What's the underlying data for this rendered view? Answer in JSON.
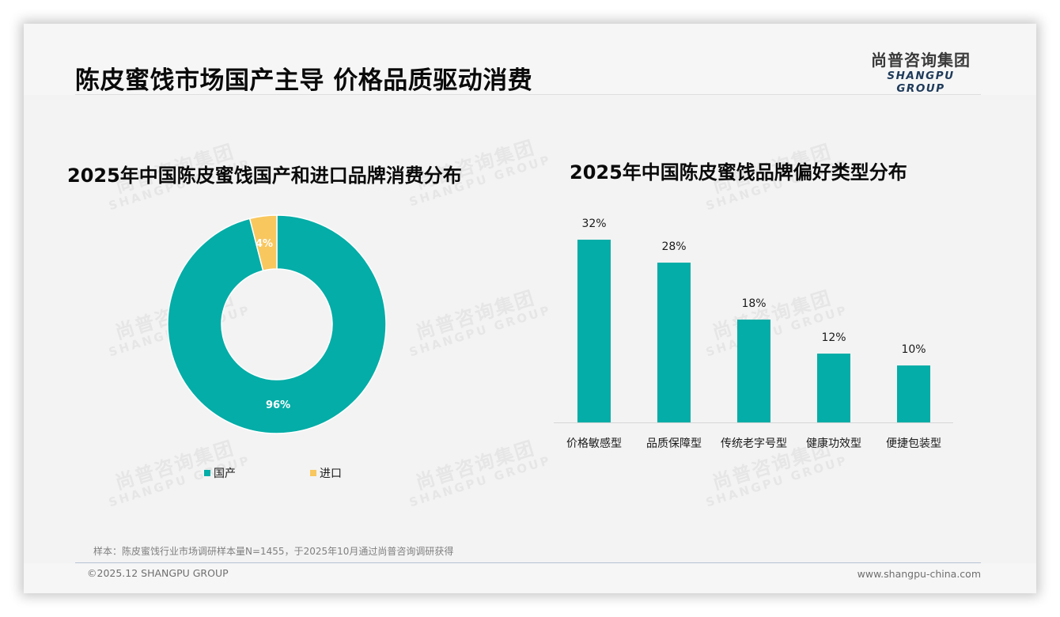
{
  "header": {
    "title": "陈皮蜜饯市场国产主导 价格品质驱动消费",
    "logo_cn": "尚普咨询集团",
    "logo_en": "SHANGPU GROUP"
  },
  "watermark": {
    "cn": "尚普咨询集团",
    "en": "SHANGPU GROUP"
  },
  "colors": {
    "teal": "#04ADA7",
    "yellow": "#F8C75E",
    "background": "#F3F3F3"
  },
  "chart_data": [
    {
      "type": "pie",
      "subtype": "donut",
      "title": "2025年中国陈皮蜜饯国产和进口品牌消费分布",
      "categories": [
        "国产",
        "进口"
      ],
      "values": [
        96,
        4
      ],
      "labels": [
        "96%",
        "4%"
      ],
      "colors": [
        "#04ADA7",
        "#F8C75E"
      ],
      "legend_position": "bottom"
    },
    {
      "type": "bar",
      "title": "2025年中国陈皮蜜饯品牌偏好类型分布",
      "categories": [
        "价格敏感型",
        "品质保障型",
        "传统老字号型",
        "健康功效型",
        "便捷包装型"
      ],
      "values": [
        32,
        28,
        18,
        12,
        10
      ],
      "labels": [
        "32%",
        "28%",
        "18%",
        "12%",
        "10%"
      ],
      "xlabel": "",
      "ylabel": "",
      "ylim": [
        0,
        35
      ],
      "grid": false,
      "color": "#04ADA7"
    }
  ],
  "left_chart": {
    "title": "2025年中国陈皮蜜饯国产和进口品牌消费分布",
    "slices": [
      {
        "name": "国产",
        "value": 96,
        "label": "96%"
      },
      {
        "name": "进口",
        "value": 4,
        "label": "4%"
      }
    ],
    "legend": [
      {
        "label": "国产"
      },
      {
        "label": "进口"
      }
    ]
  },
  "right_chart": {
    "title": "2025年中国陈皮蜜饯品牌偏好类型分布",
    "bars": [
      {
        "category": "价格敏感型",
        "value": 32,
        "label": "32%"
      },
      {
        "category": "品质保障型",
        "value": 28,
        "label": "28%"
      },
      {
        "category": "传统老字号型",
        "value": 18,
        "label": "18%"
      },
      {
        "category": "健康功效型",
        "value": 12,
        "label": "12%"
      },
      {
        "category": "便捷包装型",
        "value": 10,
        "label": "10%"
      }
    ]
  },
  "footer": {
    "source_note": "样本：陈皮蜜饯行业市场调研样本量N=1455，于2025年10月通过尚普咨询调研获得",
    "copyright": "©2025.12 SHANGPU GROUP",
    "website": "www.shangpu-china.com"
  }
}
